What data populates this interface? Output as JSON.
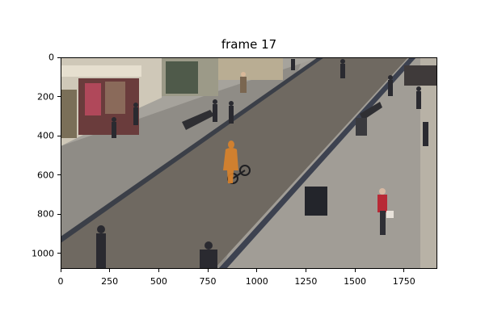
{
  "figure": {
    "title": "frame 17",
    "image_description_tag": "pedestrian-street-scene",
    "highlight_color": "#d9822b",
    "x_axis": {
      "ticks": [
        "0",
        "250",
        "500",
        "750",
        "1000",
        "1250",
        "1500",
        "1750"
      ],
      "tick_values": [
        0,
        250,
        500,
        750,
        1000,
        1250,
        1500,
        1750
      ],
      "range": [
        0,
        1920
      ]
    },
    "y_axis": {
      "ticks": [
        "0",
        "200",
        "400",
        "600",
        "800",
        "1000"
      ],
      "tick_values": [
        0,
        200,
        400,
        600,
        800,
        1000
      ],
      "range": [
        0,
        1080
      ]
    }
  }
}
